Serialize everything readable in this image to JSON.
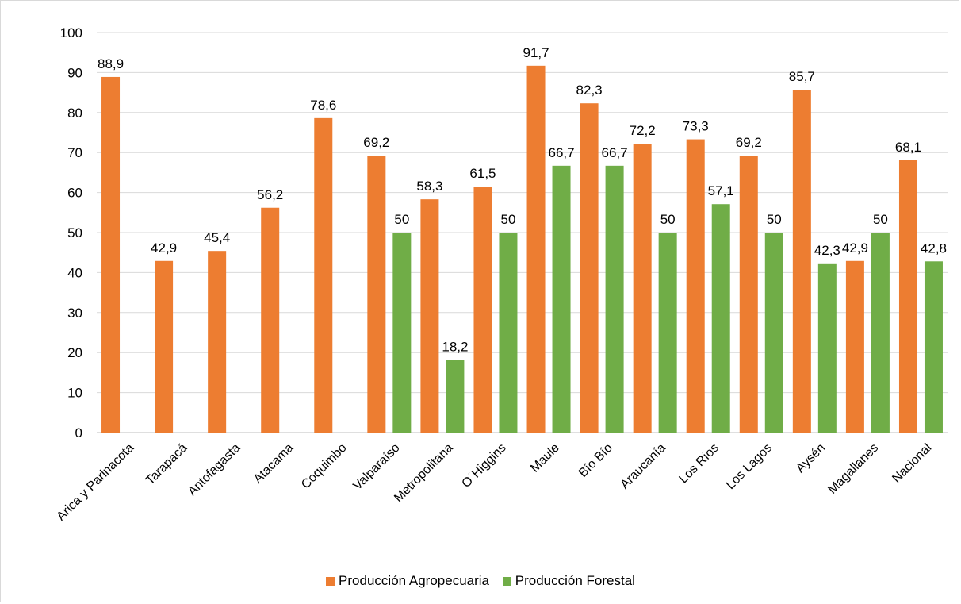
{
  "chart_data": {
    "type": "bar",
    "title": "",
    "xlabel": "",
    "ylabel": "",
    "ylim": [
      0,
      100
    ],
    "yticks": [
      0,
      10,
      20,
      30,
      40,
      50,
      60,
      70,
      80,
      90,
      100
    ],
    "grid": true,
    "legend": "bottom-center",
    "categories": [
      "Arica y Parinacota",
      "Tarapacá",
      "Antofagasta",
      "Atacama",
      "Coquimbo",
      "Valparaíso",
      "Metropolitana",
      "O´Higgins",
      "Maule",
      "Bío Bío",
      "Araucanía",
      "Los Ríos",
      "Los Lagos",
      "Aysén",
      "Magallanes",
      "Nacional"
    ],
    "series": [
      {
        "name": "Producción Agropecuaria",
        "color": "#ed7d31",
        "values": [
          88.9,
          42.9,
          45.4,
          56.2,
          78.6,
          69.2,
          58.3,
          61.5,
          91.7,
          82.3,
          72.2,
          73.3,
          69.2,
          85.7,
          42.9,
          68.1
        ],
        "labels": [
          "88,9",
          "42,9",
          "45,4",
          "56,2",
          "78,6",
          "69,2",
          "58,3",
          "61,5",
          "91,7",
          "82,3",
          "72,2",
          "73,3",
          "69,2",
          "85,7",
          "42,9",
          "68,1"
        ]
      },
      {
        "name": "Producción Forestal",
        "color": "#70ad47",
        "values": [
          null,
          null,
          null,
          null,
          null,
          50,
          18.2,
          50,
          66.7,
          66.7,
          50,
          57.1,
          50,
          42.3,
          50,
          42.8
        ],
        "labels": [
          null,
          null,
          null,
          null,
          null,
          "50",
          "18,2",
          "50",
          "66,7",
          "66,7",
          "50",
          "57,1",
          "50",
          "42,3",
          "50",
          "42,8"
        ]
      }
    ]
  }
}
